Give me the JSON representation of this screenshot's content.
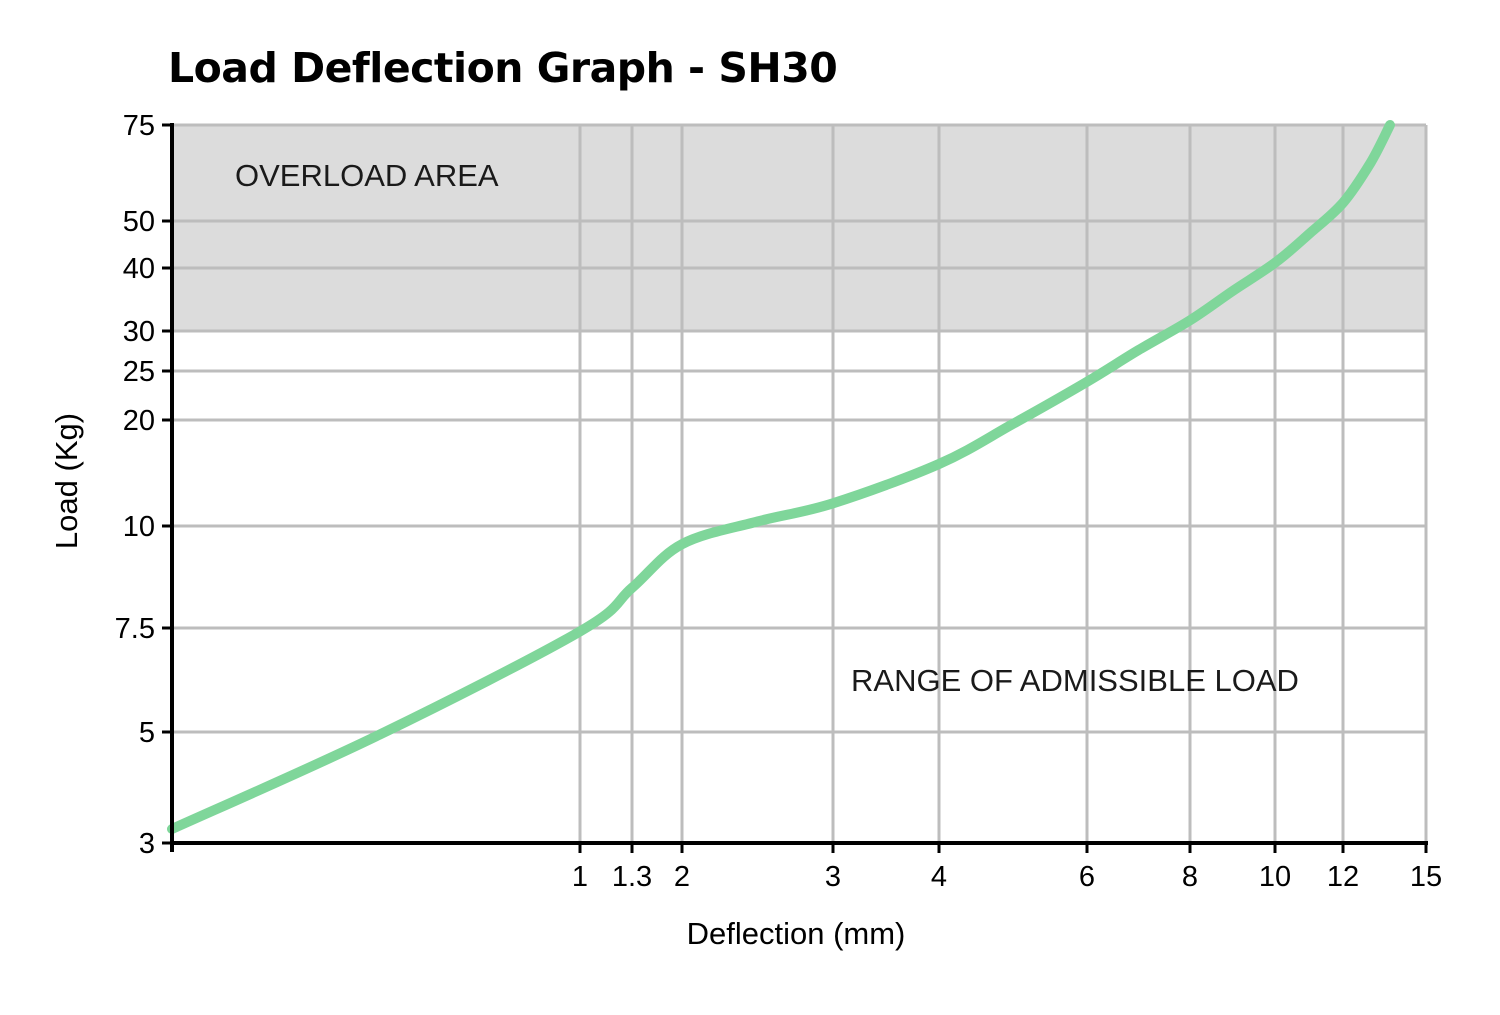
{
  "chart_data": {
    "type": "line",
    "title": "Load Deflection Graph - SH30",
    "xlabel": "Deflection (mm)",
    "ylabel": "Load (Kg)",
    "x_ticks": [
      "1",
      "1.3",
      "2",
      "3",
      "4",
      "6",
      "8",
      "10",
      "12",
      "15"
    ],
    "y_ticks": [
      "3",
      "5",
      "7.5",
      "10",
      "20",
      "25",
      "30",
      "40",
      "50",
      "75"
    ],
    "y_scale": "log",
    "grid": true,
    "overload_threshold": 30,
    "annotations": {
      "overload": "OVERLOAD AREA",
      "admissible": "RANGE OF ADMISSIBLE LOAD"
    },
    "colors": {
      "line": "#7fd69a",
      "overload_fill": "#dcdcdc",
      "grid": "#bdbdbd",
      "axis": "#000000"
    },
    "series": [
      {
        "x": [
          0,
          0.5,
          1,
          1.3,
          2,
          2.5,
          3,
          4,
          5,
          6,
          7,
          8,
          9,
          10,
          11,
          12,
          13,
          13.7
        ],
        "y": [
          3.2,
          4.9,
          7.4,
          8.4,
          9.5,
          10.3,
          11.6,
          15,
          19.5,
          23.8,
          27.5,
          31.5,
          36,
          41,
          47,
          54,
          64,
          75
        ]
      }
    ]
  }
}
